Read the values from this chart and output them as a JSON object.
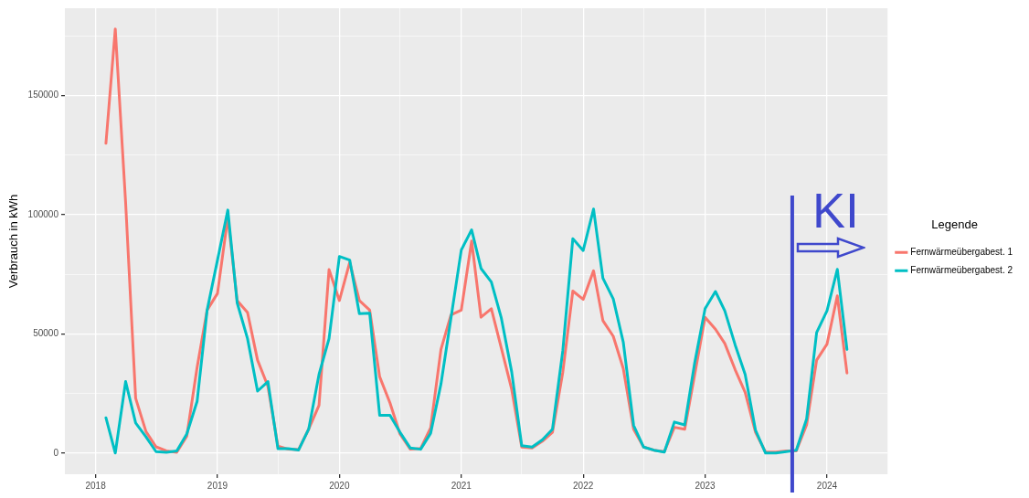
{
  "chart_data": {
    "type": "line",
    "ylabel": "Verbrauch in kWh",
    "legend_title": "Legende",
    "legend": "right",
    "grid": true,
    "line_style": "solid",
    "marker": "none",
    "x": [
      "2018-02",
      "2018-03",
      "2018-04",
      "2018-05",
      "2018-06",
      "2018-07",
      "2018-08",
      "2018-09",
      "2018-10",
      "2018-11",
      "2018-12",
      "2019-01",
      "2019-02",
      "2019-03",
      "2019-04",
      "2019-05",
      "2019-06",
      "2019-07",
      "2019-08",
      "2019-09",
      "2019-10",
      "2019-11",
      "2019-12",
      "2020-01",
      "2020-02",
      "2020-03",
      "2020-04",
      "2020-05",
      "2020-06",
      "2020-07",
      "2020-08",
      "2020-09",
      "2020-10",
      "2020-11",
      "2020-12",
      "2021-01",
      "2021-02",
      "2021-03",
      "2021-04",
      "2021-05",
      "2021-06",
      "2021-07",
      "2021-08",
      "2021-09",
      "2021-10",
      "2021-11",
      "2021-12",
      "2022-01",
      "2022-02",
      "2022-03",
      "2022-04",
      "2022-05",
      "2022-06",
      "2022-07",
      "2022-08",
      "2022-09",
      "2022-10",
      "2022-11",
      "2022-12",
      "2023-01",
      "2023-02",
      "2023-03",
      "2023-04",
      "2023-05",
      "2023-06",
      "2023-07",
      "2023-08",
      "2023-09",
      "2023-10",
      "2023-11",
      "2023-12",
      "2024-01",
      "2024-02",
      "2024-03"
    ],
    "series": [
      {
        "name": "Fernwärmeübergabest. 1",
        "color": "#f8766d",
        "values": [
          130000,
          178000,
          105000,
          23000,
          9000,
          2600,
          900,
          300,
          7000,
          36000,
          60000,
          67000,
          99000,
          64000,
          59000,
          39000,
          28000,
          2900,
          1600,
          1500,
          10000,
          20000,
          77000,
          64000,
          80000,
          64000,
          60000,
          32000,
          21000,
          8000,
          1600,
          1900,
          10600,
          43500,
          58000,
          60000,
          89000,
          57000,
          60600,
          44000,
          26700,
          2500,
          2100,
          5000,
          8700,
          34000,
          68000,
          64500,
          76500,
          55600,
          49000,
          35500,
          10000,
          2500,
          1200,
          600,
          10800,
          10000,
          33000,
          57000,
          52000,
          46000,
          35000,
          25500,
          8700,
          400,
          400,
          900,
          900,
          11800,
          39000,
          45700,
          66000,
          33600
        ]
      },
      {
        "name": "Fernwärmeübergabest. 2",
        "color": "#00bfc4",
        "values": [
          14800,
          0,
          30000,
          12600,
          6800,
          600,
          300,
          900,
          8000,
          21700,
          60000,
          81000,
          102000,
          63000,
          48000,
          26000,
          30000,
          1800,
          1800,
          1300,
          10000,
          33000,
          48000,
          82500,
          81000,
          58500,
          58700,
          15800,
          15800,
          8700,
          2100,
          1600,
          8300,
          29000,
          56600,
          85200,
          93700,
          77500,
          71800,
          56600,
          34000,
          3100,
          2500,
          5600,
          10000,
          43000,
          90000,
          85000,
          102400,
          73400,
          64700,
          46600,
          11600,
          2500,
          1200,
          400,
          13000,
          11800,
          38000,
          60600,
          67800,
          59700,
          45400,
          33000,
          9600,
          0,
          0,
          600,
          1200,
          14300,
          50600,
          59700,
          77100,
          43500
        ]
      }
    ],
    "xlim": [
      "2017-10",
      "2024-07"
    ],
    "xticks": [
      "2018",
      {
        "value": "2018-07",
        "label": null
      },
      "2019",
      {
        "value": "2019-07",
        "label": null
      },
      "2020",
      {
        "value": "2020-07",
        "label": null
      },
      "2021",
      {
        "value": "2021-07",
        "label": null
      },
      "2022",
      {
        "value": "2022-07",
        "label": null
      },
      "2023",
      {
        "value": "2023-07",
        "label": null
      },
      "2024"
    ],
    "ylim": [
      -8900,
      186700
    ],
    "yticks": [
      0,
      {
        "value": 25000,
        "label": null
      },
      50000,
      {
        "value": 75000,
        "label": null
      },
      100000,
      {
        "value": 125000,
        "label": null
      },
      150000,
      {
        "value": 175000,
        "label": null
      }
    ],
    "ref_lines": [
      {
        "axis": "x",
        "value": "2023-09-19",
        "label": "KI",
        "color": "#3f48cc"
      }
    ]
  }
}
